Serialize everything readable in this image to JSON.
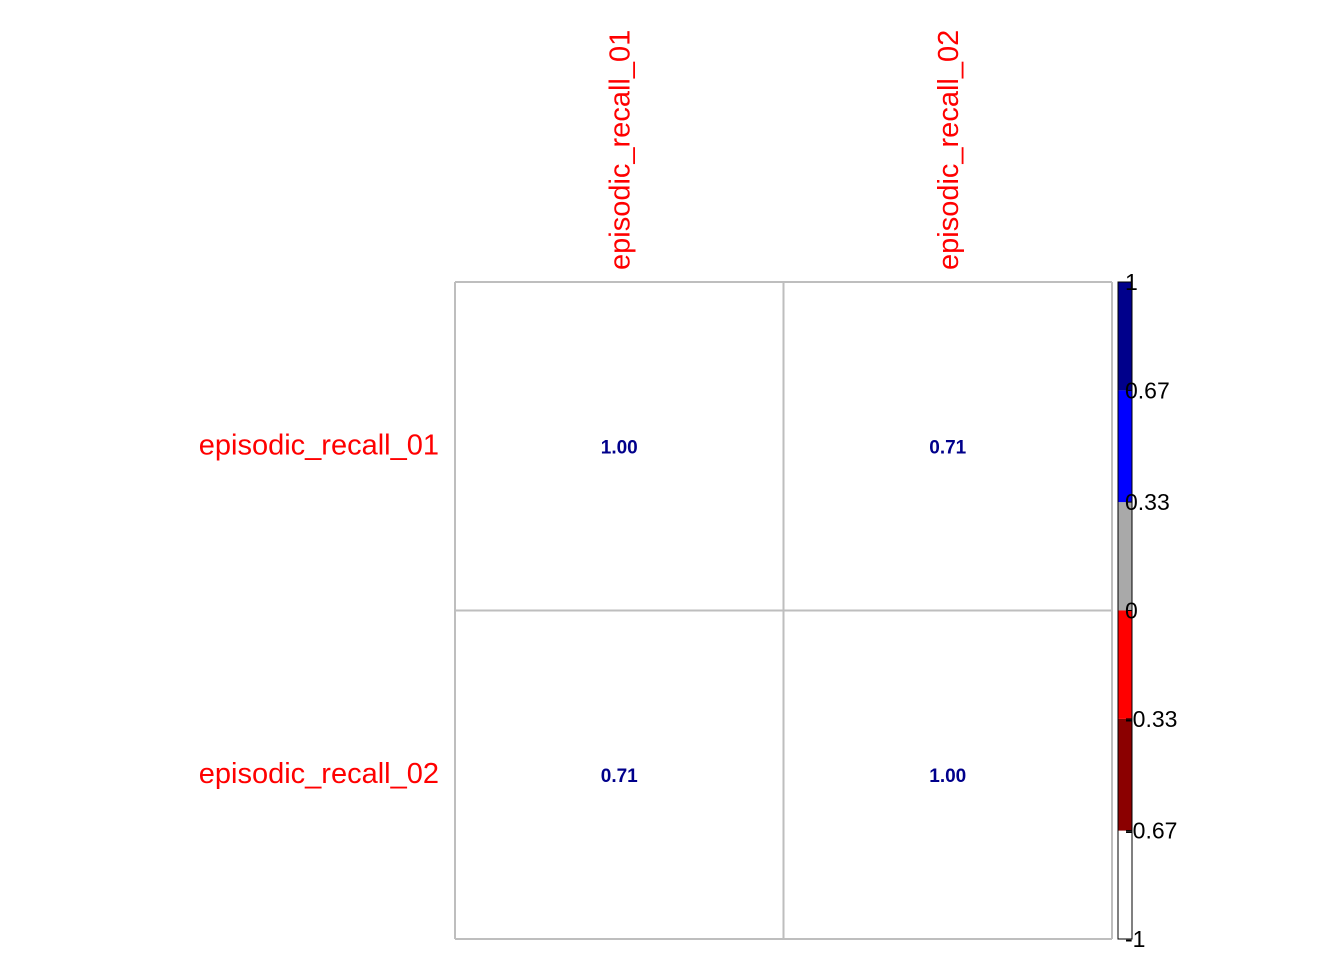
{
  "chart_data": {
    "type": "heatmap",
    "title": "",
    "row_labels": [
      "episodic_recall_01",
      "episodic_recall_02"
    ],
    "col_labels": [
      "episodic_recall_01",
      "episodic_recall_02"
    ],
    "values": [
      [
        1.0,
        0.71
      ],
      [
        0.71,
        1.0
      ]
    ],
    "cell_labels": [
      [
        "1.00",
        "0.71"
      ],
      [
        "0.71",
        "1.00"
      ]
    ],
    "label_color": "#ff0000",
    "value_color": "#00008b",
    "grid_color": "#bebebe",
    "colorbar": {
      "ticks": [
        "1",
        "0.67",
        "0.33",
        "0",
        "-0.33",
        "-0.67",
        "-1"
      ],
      "range": [
        -1,
        1
      ],
      "segments": [
        {
          "from": -1,
          "to": -0.67,
          "color": "#ffffff"
        },
        {
          "from": -0.67,
          "to": -0.33,
          "color": "#8b0000"
        },
        {
          "from": -0.33,
          "to": 0,
          "color": "#ff0000"
        },
        {
          "from": 0,
          "to": 0.33,
          "color": "#a9a9a9"
        },
        {
          "from": 0.33,
          "to": 0.67,
          "color": "#0000ff"
        },
        {
          "from": 0.67,
          "to": 1,
          "color": "#00008b"
        }
      ]
    }
  }
}
